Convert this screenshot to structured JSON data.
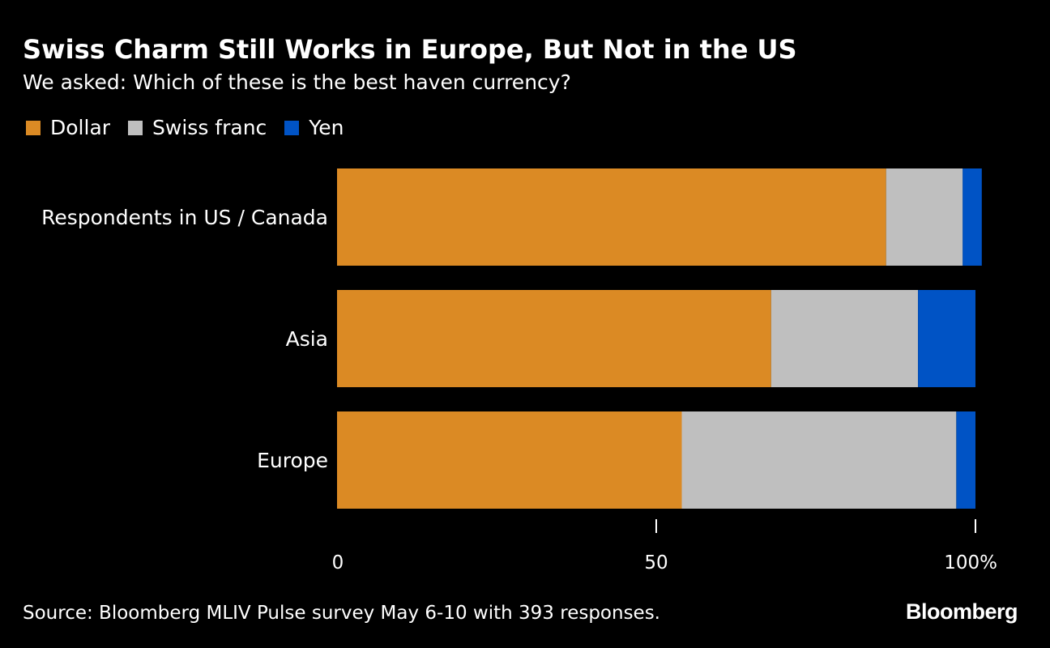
{
  "header": {
    "title": "Swiss Charm Still Works in Europe, But Not in the US",
    "subtitle": "We asked: Which of these is the best haven currency?"
  },
  "legend": [
    {
      "label": "Dollar",
      "color": "#DB8A24"
    },
    {
      "label": "Swiss franc",
      "color": "#BFBFBF"
    },
    {
      "label": "Yen",
      "color": "#0053C5"
    }
  ],
  "chart_data": {
    "type": "bar",
    "orientation": "horizontal",
    "stacked": true,
    "categories": [
      "Respondents in US / Canada",
      "Asia",
      "Europe"
    ],
    "series": [
      {
        "name": "Dollar",
        "color": "#DB8A24",
        "values": [
          86,
          68,
          54
        ]
      },
      {
        "name": "Swiss franc",
        "color": "#BFBFBF",
        "values": [
          12,
          23,
          43
        ]
      },
      {
        "name": "Yen",
        "color": "#0053C5",
        "values": [
          3,
          9,
          3
        ]
      }
    ],
    "xlim": [
      0,
      100
    ],
    "xticks": [
      0,
      50,
      100
    ],
    "xtick_labels": [
      "0",
      "50",
      "100%"
    ],
    "grid": false,
    "legend_position": "top-left"
  },
  "footer": {
    "source": "Source: Bloomberg MLIV Pulse survey May 6-10 with 393 responses.",
    "brand": "Bloomberg"
  }
}
